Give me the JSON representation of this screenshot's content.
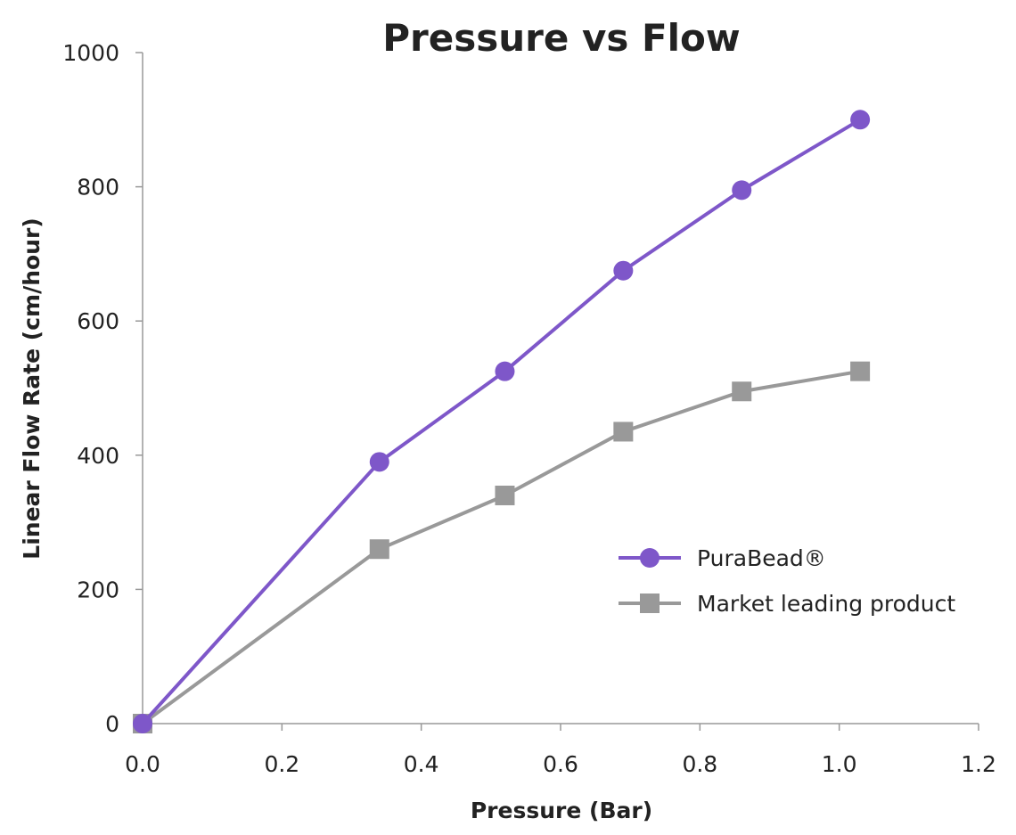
{
  "chart_data": {
    "type": "line",
    "title": "Pressure vs Flow",
    "xlabel": "Pressure (Bar)",
    "ylabel": "Linear Flow Rate (cm/hour)",
    "xlim": [
      0,
      1.2
    ],
    "ylim": [
      0,
      1000
    ],
    "x_ticks": [
      "0.0",
      "0.2",
      "0.4",
      "0.6",
      "0.8",
      "1.0",
      "1.2"
    ],
    "y_ticks": [
      "0",
      "200",
      "400",
      "600",
      "800",
      "1000"
    ],
    "grid": false,
    "legend_position": "center-right",
    "series": [
      {
        "name": "PuraBead®",
        "color": "#7e57c9",
        "marker": "circle",
        "x": [
          0.0,
          0.34,
          0.52,
          0.69,
          0.86,
          1.03
        ],
        "y": [
          0,
          390,
          525,
          675,
          795,
          900
        ]
      },
      {
        "name": "Market leading product",
        "color": "#999999",
        "marker": "square",
        "x": [
          0.0,
          0.34,
          0.52,
          0.69,
          0.86,
          1.03
        ],
        "y": [
          0,
          260,
          340,
          435,
          495,
          525
        ]
      }
    ]
  }
}
